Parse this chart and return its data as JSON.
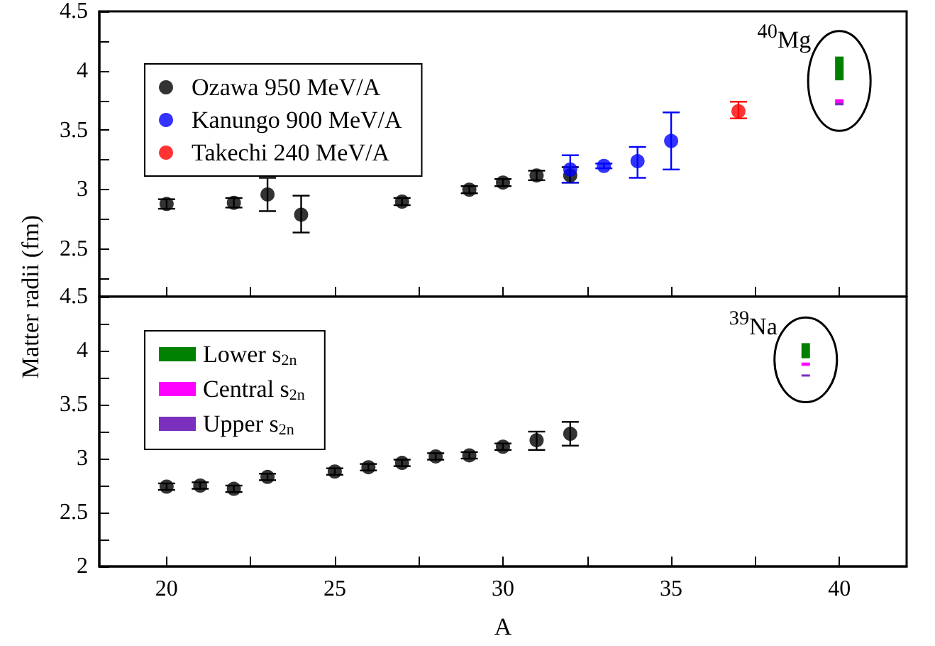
{
  "chart_data": [
    {
      "type": "scatter",
      "ylabel": "Matter radii (fm)",
      "xlim": [
        18,
        42
      ],
      "xticks": [
        20,
        {
          "value": 22.5,
          "label": null
        },
        25,
        {
          "value": 27.5,
          "label": null
        },
        30,
        {
          "value": 32.5,
          "label": null
        },
        35,
        {
          "value": 37.5,
          "label": null
        },
        40
      ],
      "ylim": [
        2.1,
        4.5
      ],
      "yticks": [
        {
          "value": 2.25,
          "label": null
        },
        2.5,
        {
          "value": 2.75,
          "label": null
        },
        3,
        {
          "value": 3.25,
          "label": null
        },
        3.5,
        {
          "value": 3.75,
          "label": null
        },
        4,
        {
          "value": 4.25,
          "label": null
        },
        4.5
      ],
      "tick_labels": "y",
      "legend": "top left",
      "marker": "circle",
      "annotations": [
        "$^{40}$Mg"
      ],
      "series": [
        {
          "name": "Ozawa 950 MeV/A",
          "color": "#000000",
          "x": [
            20,
            22,
            23,
            24,
            27,
            29,
            30,
            31,
            32
          ],
          "values": [
            2.88,
            2.89,
            2.96,
            2.79,
            2.9,
            3.0,
            3.06,
            3.12,
            3.12
          ],
          "errors": [
            0.04,
            0.04,
            [
              2.82,
              3.1
            ],
            [
              2.64,
              2.95
            ],
            0.03,
            0.03,
            0.03,
            0.04,
            [
              3.06,
              3.19
            ]
          ]
        },
        {
          "name": "Kanungo 900 MeV/A",
          "color": "#0000ff",
          "x": [
            32,
            33,
            34,
            35
          ],
          "values": [
            3.17,
            3.2,
            3.24,
            3.41
          ],
          "errors": [
            [
              3.06,
              3.29
            ],
            0.02,
            [
              3.1,
              3.36
            ],
            [
              3.17,
              3.65
            ]
          ]
        },
        {
          "name": "Takechi 240 MeV/A",
          "color": "#ff0000",
          "x": [
            37
          ],
          "values": [
            3.66
          ],
          "errors": [
            [
              3.6,
              3.74
            ]
          ]
        },
        {
          "type": "bar",
          "color": "#008000",
          "x": [
            40
          ],
          "base": [
            3.92
          ],
          "values": [
            0.2
          ]
        },
        {
          "type": "bar",
          "color": "#ff00ff",
          "x": [
            40
          ],
          "base": [
            3.73
          ],
          "values": [
            0.03
          ]
        },
        {
          "type": "bar",
          "color": "#7b2fbe",
          "x": [
            40
          ],
          "base": [
            3.71
          ],
          "values": [
            0.02
          ]
        }
      ]
    },
    {
      "type": "scatter",
      "xlabel": "A",
      "xlim": [
        18,
        42
      ],
      "xticks": [
        20,
        {
          "value": 22.5,
          "label": null
        },
        25,
        {
          "value": 27.5,
          "label": null
        },
        30,
        {
          "value": 32.5,
          "label": null
        },
        35,
        {
          "value": 37.5,
          "label": null
        },
        40
      ],
      "ylim": [
        2,
        4.5
      ],
      "yticks": [
        2,
        {
          "value": 2.25,
          "label": null
        },
        2.5,
        {
          "value": 2.75,
          "label": null
        },
        3,
        {
          "value": 3.25,
          "label": null
        },
        3.5,
        {
          "value": 3.75,
          "label": null
        },
        4,
        {
          "value": 4.25,
          "label": null
        },
        4.5
      ],
      "legend": "top left",
      "marker": "circle",
      "annotations": [
        "$^{39}$Na"
      ],
      "series": [
        {
          "color": "#000000",
          "x": [
            20,
            21,
            22,
            23,
            25,
            26,
            27,
            28,
            29,
            30,
            31,
            32
          ],
          "values": [
            2.74,
            2.75,
            2.72,
            2.83,
            2.88,
            2.92,
            2.96,
            3.02,
            3.03,
            3.11,
            3.17,
            3.23
          ],
          "errors": [
            0.03,
            0.03,
            0.03,
            0.03,
            0.03,
            0.03,
            0.03,
            0.03,
            0.03,
            0.03,
            [
              3.08,
              3.25
            ],
            [
              3.12,
              3.34
            ]
          ]
        },
        {
          "type": "bar",
          "name": "Lower s$_{2n}$",
          "color": "#008000",
          "x": [
            39
          ],
          "base": [
            3.93
          ],
          "values": [
            0.14
          ]
        },
        {
          "type": "bar",
          "name": "Central s$_{2n}$",
          "color": "#ff00ff",
          "x": [
            39
          ],
          "base": [
            3.86
          ],
          "values": [
            0.03
          ]
        },
        {
          "type": "bar",
          "name": "Upper s$_{2n}$",
          "color": "#7b2fbe",
          "x": [
            39
          ],
          "base": [
            3.76
          ],
          "values": [
            0.02
          ]
        }
      ]
    }
  ]
}
